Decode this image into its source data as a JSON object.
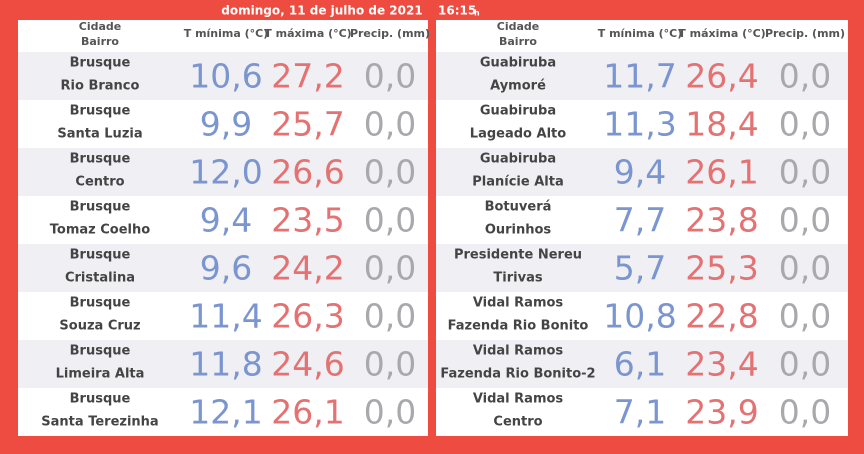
{
  "header": {
    "date": "domingo, 11 de julho de 2021",
    "time": "16:15",
    "time_unit": "h"
  },
  "tables": [
    {
      "columns": {
        "city": "Cidade",
        "district": "Bairro",
        "tmin": "T mínima (°C)",
        "tmax": "T máxima (°C)",
        "precip": "Precip. (mm)"
      },
      "rows": [
        {
          "city": "Brusque",
          "district": "Rio Branco",
          "tmin": "10,6",
          "tmax": "27,2",
          "precip": "0,0"
        },
        {
          "city": "Brusque",
          "district": "Santa Luzia",
          "tmin": "9,9",
          "tmax": "25,7",
          "precip": "0,0"
        },
        {
          "city": "Brusque",
          "district": "Centro",
          "tmin": "12,0",
          "tmax": "26,6",
          "precip": "0,0"
        },
        {
          "city": "Brusque",
          "district": "Tomaz Coelho",
          "tmin": "9,4",
          "tmax": "23,5",
          "precip": "0,0"
        },
        {
          "city": "Brusque",
          "district": "Cristalina",
          "tmin": "9,6",
          "tmax": "24,2",
          "precip": "0,0"
        },
        {
          "city": "Brusque",
          "district": "Souza Cruz",
          "tmin": "11,4",
          "tmax": "26,3",
          "precip": "0,0"
        },
        {
          "city": "Brusque",
          "district": "Limeira Alta",
          "tmin": "11,8",
          "tmax": "24,6",
          "precip": "0,0"
        },
        {
          "city": "Brusque",
          "district": "Santa Terezinha",
          "tmin": "12,1",
          "tmax": "26,1",
          "precip": "0,0"
        }
      ]
    },
    {
      "columns": {
        "city": "Cidade",
        "district": "Bairro",
        "tmin": "T mínima (°C)",
        "tmax": "T máxima (°C)",
        "precip": "Precip. (mm)"
      },
      "rows": [
        {
          "city": "Guabiruba",
          "district": "Aymoré",
          "tmin": "11,7",
          "tmax": "26,4",
          "precip": "0,0"
        },
        {
          "city": "Guabiruba",
          "district": "Lageado Alto",
          "tmin": "11,3",
          "tmax": "18,4",
          "precip": "0,0"
        },
        {
          "city": "Guabiruba",
          "district": "Planície Alta",
          "tmin": "9,4",
          "tmax": "26,1",
          "precip": "0,0"
        },
        {
          "city": "Botuverá",
          "district": "Ourinhos",
          "tmin": "7,7",
          "tmax": "23,8",
          "precip": "0,0"
        },
        {
          "city": "Presidente Nereu",
          "district": "Tirivas",
          "tmin": "5,7",
          "tmax": "25,3",
          "precip": "0,0"
        },
        {
          "city": "Vidal Ramos",
          "district": "Fazenda Rio Bonito",
          "tmin": "10,8",
          "tmax": "22,8",
          "precip": "0,0"
        },
        {
          "city": "Vidal Ramos",
          "district": "Fazenda Rio Bonito-2",
          "tmin": "6,1",
          "tmax": "23,4",
          "precip": "0,0"
        },
        {
          "city": "Vidal Ramos",
          "district": "Centro",
          "tmin": "7,1",
          "tmax": "23,9",
          "precip": "0,0"
        }
      ]
    }
  ]
}
